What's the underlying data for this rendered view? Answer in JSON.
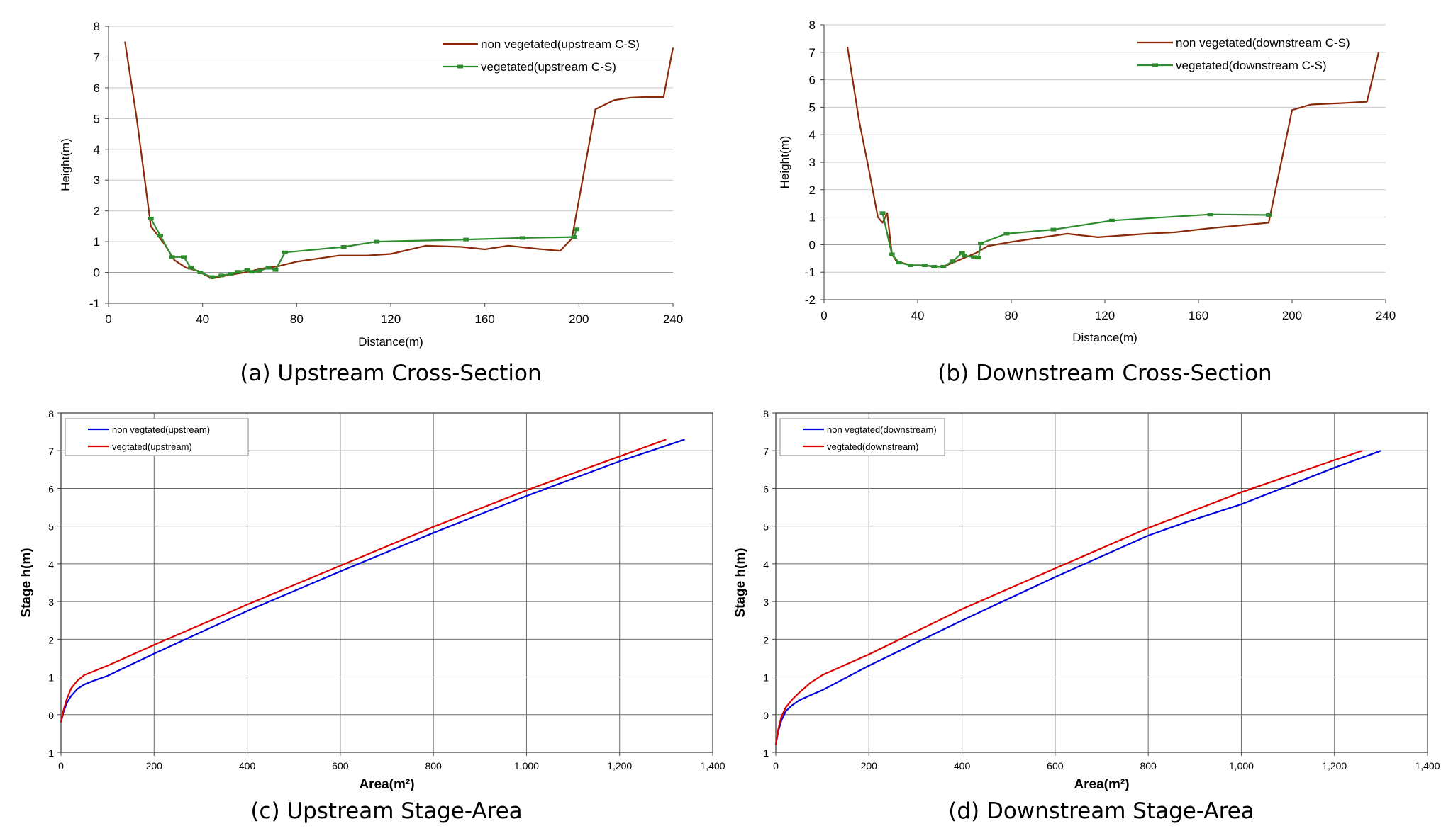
{
  "chart_data": [
    {
      "id": "a",
      "type": "line",
      "caption": "(a) Upstream Cross-Section",
      "xlabel": "Distance(m)",
      "ylabel": "Height(m)",
      "xlim": [
        0,
        240
      ],
      "ylim": [
        -1,
        8
      ],
      "xticks": [
        "0",
        "40",
        "80",
        "120",
        "160",
        "200",
        "240"
      ],
      "yticks": [
        "-1",
        "0",
        "1",
        "2",
        "3",
        "4",
        "5",
        "6",
        "7",
        "8"
      ],
      "grid": "horizontal",
      "legend_position": "top-right",
      "series": [
        {
          "name": "non vegetated(upstream C-S)",
          "color": "#8b2a08",
          "marker": false,
          "x": [
            7,
            12,
            18,
            24,
            28,
            33,
            38,
            44,
            50,
            58,
            65,
            72,
            80,
            98,
            110,
            120,
            135,
            150,
            160,
            170,
            183,
            192,
            197,
            207,
            215,
            222,
            229,
            236,
            240
          ],
          "y": [
            7.5,
            5.0,
            1.5,
            0.9,
            0.4,
            0.15,
            0.05,
            -0.2,
            -0.1,
            0.0,
            0.12,
            0.2,
            0.35,
            0.55,
            0.55,
            0.6,
            0.87,
            0.83,
            0.75,
            0.87,
            0.76,
            0.7,
            1.1,
            5.3,
            5.6,
            5.68,
            5.7,
            5.7,
            7.3
          ]
        },
        {
          "name": "vegetated(upstream C-S)",
          "color": "#2e8b2e",
          "marker": true,
          "x": [
            18,
            22,
            27,
            32,
            35,
            39,
            44,
            48,
            52,
            55,
            59,
            61,
            64,
            68,
            71,
            75,
            100,
            114,
            152,
            176,
            198,
            199
          ],
          "y": [
            1.75,
            1.2,
            0.5,
            0.5,
            0.15,
            0.0,
            -0.15,
            -0.1,
            -0.05,
            0.02,
            0.08,
            0.02,
            0.05,
            0.15,
            0.08,
            0.65,
            0.83,
            1.0,
            1.07,
            1.12,
            1.15,
            1.4
          ]
        }
      ]
    },
    {
      "id": "b",
      "type": "line",
      "caption": "(b) Downstream Cross-Section",
      "xlabel": "Distance(m)",
      "ylabel": "Height(m)",
      "xlim": [
        0,
        240
      ],
      "ylim": [
        -2,
        8
      ],
      "xticks": [
        "0",
        "40",
        "80",
        "120",
        "160",
        "200",
        "240"
      ],
      "yticks": [
        "-2",
        "-1",
        "0",
        "1",
        "2",
        "3",
        "4",
        "5",
        "6",
        "7",
        "8"
      ],
      "grid": "horizontal",
      "legend_position": "top-right",
      "series": [
        {
          "name": "non vegetated(downstream C-S)",
          "color": "#8b2a08",
          "marker": false,
          "x": [
            10,
            15,
            19,
            23,
            25,
            27,
            29,
            31,
            37,
            43,
            47,
            51,
            58,
            65,
            70,
            80,
            104,
            117,
            138,
            150,
            165,
            190,
            200,
            208,
            221,
            232,
            237
          ],
          "y": [
            7.2,
            4.5,
            2.8,
            1.0,
            0.8,
            1.15,
            -0.35,
            -0.6,
            -0.75,
            -0.75,
            -0.8,
            -0.8,
            -0.55,
            -0.3,
            -0.05,
            0.1,
            0.4,
            0.27,
            0.4,
            0.45,
            0.6,
            0.8,
            4.9,
            5.1,
            5.15,
            5.2,
            7.0
          ]
        },
        {
          "name": "vegetated(downstream C-S)",
          "color": "#2e8b2e",
          "marker": true,
          "x": [
            25,
            29,
            32,
            37,
            43,
            47,
            51,
            55,
            59,
            60,
            64,
            66,
            67,
            78,
            98,
            123,
            165,
            190
          ],
          "y": [
            1.15,
            -0.35,
            -0.65,
            -0.75,
            -0.75,
            -0.8,
            -0.8,
            -0.6,
            -0.3,
            -0.4,
            -0.45,
            -0.47,
            0.05,
            0.4,
            0.55,
            0.88,
            1.1,
            1.08
          ]
        }
      ]
    },
    {
      "id": "c",
      "type": "line",
      "caption": "(c) Upstream Stage-Area",
      "xlabel": "Area(m²)",
      "ylabel": "Stage h(m)",
      "xlim": [
        0,
        1400
      ],
      "ylim": [
        -1,
        8
      ],
      "xticks": [
        "0",
        "200",
        "400",
        "600",
        "800",
        "1,000",
        "1,200",
        "1,400"
      ],
      "yticks": [
        "-1",
        "0",
        "1",
        "2",
        "3",
        "4",
        "5",
        "6",
        "7",
        "8"
      ],
      "grid": "both",
      "legend_position": "top-left",
      "series": [
        {
          "name": "non vegtated(upstream)",
          "color": "#0000dd",
          "marker": false,
          "x": [
            0,
            5,
            12,
            22,
            35,
            50,
            70,
            100,
            200,
            400,
            600,
            800,
            1000,
            1200,
            1340
          ],
          "y": [
            -0.2,
            0.05,
            0.3,
            0.5,
            0.68,
            0.8,
            0.9,
            1.03,
            1.62,
            2.75,
            3.8,
            4.82,
            5.8,
            6.72,
            7.3
          ]
        },
        {
          "name": "vegtated(upstream)",
          "color": "#dd0000",
          "marker": false,
          "x": [
            0,
            5,
            12,
            22,
            35,
            50,
            70,
            100,
            200,
            400,
            600,
            800,
            1000,
            1200,
            1300
          ],
          "y": [
            -0.2,
            0.1,
            0.4,
            0.7,
            0.9,
            1.05,
            1.15,
            1.3,
            1.85,
            2.92,
            3.95,
            4.98,
            5.95,
            6.85,
            7.3
          ]
        }
      ]
    },
    {
      "id": "d",
      "type": "line",
      "caption": "(d) Downstream Stage-Area",
      "xlabel": "Area(m²)",
      "ylabel": "Stage h(m)",
      "xlim": [
        0,
        1400
      ],
      "ylim": [
        -1,
        8
      ],
      "xticks": [
        "0",
        "200",
        "400",
        "600",
        "800",
        "1,000",
        "1,200",
        "1,400"
      ],
      "yticks": [
        "-1",
        "0",
        "1",
        "2",
        "3",
        "4",
        "5",
        "6",
        "7",
        "8"
      ],
      "grid": "both",
      "legend_position": "top-left",
      "series": [
        {
          "name": "non vegtated(downstream)",
          "color": "#0000dd",
          "marker": false,
          "x": [
            0,
            5,
            12,
            22,
            35,
            50,
            75,
            100,
            200,
            400,
            600,
            800,
            880,
            1000,
            1200,
            1300
          ],
          "y": [
            -0.8,
            -0.45,
            -0.15,
            0.1,
            0.25,
            0.38,
            0.52,
            0.65,
            1.3,
            2.5,
            3.65,
            4.75,
            5.1,
            5.58,
            6.55,
            7.0
          ]
        },
        {
          "name": "vegtated(downstream)",
          "color": "#dd0000",
          "marker": false,
          "x": [
            0,
            5,
            12,
            22,
            35,
            50,
            75,
            100,
            200,
            400,
            600,
            800,
            1000,
            1200,
            1260
          ],
          "y": [
            -0.8,
            -0.4,
            -0.05,
            0.2,
            0.4,
            0.58,
            0.85,
            1.05,
            1.6,
            2.8,
            3.88,
            4.95,
            5.9,
            6.75,
            7.0
          ]
        }
      ]
    }
  ]
}
